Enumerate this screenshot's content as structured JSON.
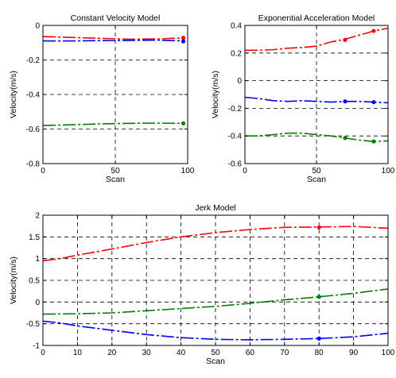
{
  "chart_data": [
    {
      "type": "line",
      "title": "Constant Velocity Model",
      "xlabel": "Scan",
      "ylabel": "Velocity(m/s)",
      "xlim": [
        0,
        100
      ],
      "ylim": [
        -0.8,
        0
      ],
      "xticks": [
        0,
        50,
        100
      ],
      "yticks": [
        -0.8,
        -0.6,
        -0.4,
        -0.2,
        0
      ],
      "xtick_labels": [
        "0",
        "50",
        "100"
      ],
      "ytick_labels": [
        "-0.8",
        "-0.6",
        "-0.4",
        "-0.2",
        "0"
      ],
      "grid": true,
      "series": [
        {
          "color": "#ff0000",
          "x": [
            0,
            20,
            40,
            60,
            80,
            98
          ],
          "y": [
            -0.065,
            -0.07,
            -0.075,
            -0.08,
            -0.078,
            -0.072
          ],
          "markers": [
            {
              "x": 97,
              "y": -0.072
            }
          ]
        },
        {
          "color": "#0000ff",
          "x": [
            0,
            20,
            40,
            60,
            80,
            98
          ],
          "y": [
            -0.09,
            -0.09,
            -0.088,
            -0.087,
            -0.085,
            -0.09
          ],
          "markers": [
            {
              "x": 97,
              "y": -0.092
            }
          ]
        },
        {
          "color": "#008000",
          "x": [
            0,
            20,
            40,
            60,
            80,
            98
          ],
          "y": [
            -0.58,
            -0.575,
            -0.57,
            -0.567,
            -0.566,
            -0.567
          ],
          "markers": [
            {
              "x": 97,
              "y": -0.567
            }
          ]
        }
      ]
    },
    {
      "type": "line",
      "title": "Exponential Acceleration Model",
      "xlabel": "Scan",
      "ylabel": "Velocity(m/s)",
      "xlim": [
        0,
        100
      ],
      "ylim": [
        -0.6,
        0.4
      ],
      "xticks": [
        0,
        50,
        100
      ],
      "yticks": [
        -0.6,
        -0.4,
        -0.2,
        0,
        0.2,
        0.4
      ],
      "xtick_labels": [
        "0",
        "50",
        "100"
      ],
      "ytick_labels": [
        "-0.6",
        "-0.4",
        "-0.2",
        "0",
        "0.2",
        "0.4"
      ],
      "grid": true,
      "series": [
        {
          "color": "#ff0000",
          "x": [
            0,
            10,
            20,
            30,
            40,
            50,
            60,
            70,
            80,
            90,
            100
          ],
          "y": [
            0.22,
            0.22,
            0.225,
            0.235,
            0.24,
            0.25,
            0.28,
            0.3,
            0.33,
            0.36,
            0.38
          ],
          "markers": [
            {
              "x": 70,
              "y": 0.295
            },
            {
              "x": 90,
              "y": 0.36
            }
          ]
        },
        {
          "color": "#0000ff",
          "x": [
            0,
            10,
            20,
            30,
            40,
            50,
            60,
            70,
            80,
            90,
            100
          ],
          "y": [
            -0.12,
            -0.13,
            -0.145,
            -0.15,
            -0.145,
            -0.15,
            -0.155,
            -0.15,
            -0.15,
            -0.155,
            -0.16
          ],
          "markers": [
            {
              "x": 70,
              "y": -0.15
            },
            {
              "x": 90,
              "y": -0.155
            }
          ]
        },
        {
          "color": "#008000",
          "x": [
            0,
            10,
            20,
            30,
            40,
            50,
            60,
            70,
            80,
            90,
            100
          ],
          "y": [
            -0.4,
            -0.4,
            -0.39,
            -0.38,
            -0.38,
            -0.39,
            -0.4,
            -0.415,
            -0.43,
            -0.44,
            -0.435
          ],
          "markers": [
            {
              "x": 70,
              "y": -0.415
            },
            {
              "x": 90,
              "y": -0.44
            }
          ]
        }
      ]
    },
    {
      "type": "line",
      "title": "Jerk Model",
      "xlabel": "Scan",
      "ylabel": "Velocity(m/s)",
      "xlim": [
        0,
        100
      ],
      "ylim": [
        -1,
        2
      ],
      "xticks": [
        0,
        10,
        20,
        30,
        40,
        50,
        60,
        70,
        80,
        90,
        100
      ],
      "yticks": [
        -1,
        -0.5,
        0,
        0.5,
        1,
        1.5,
        2
      ],
      "xtick_labels": [
        "0",
        "10",
        "20",
        "30",
        "40",
        "50",
        "60",
        "70",
        "80",
        "90",
        "100"
      ],
      "ytick_labels": [
        "-1",
        "-0.5",
        "0",
        "0.5",
        "1",
        "1.5",
        "2"
      ],
      "grid": true,
      "series": [
        {
          "color": "#ff0000",
          "x": [
            0,
            5,
            10,
            20,
            30,
            40,
            50,
            60,
            70,
            80,
            90,
            100
          ],
          "y": [
            0.95,
            1.0,
            1.08,
            1.22,
            1.37,
            1.5,
            1.6,
            1.67,
            1.72,
            1.73,
            1.74,
            1.7
          ],
          "markers": [
            {
              "x": 80,
              "y": 1.72
            }
          ]
        },
        {
          "color": "#008000",
          "x": [
            0,
            10,
            20,
            30,
            40,
            50,
            60,
            70,
            80,
            90,
            100
          ],
          "y": [
            -0.28,
            -0.27,
            -0.25,
            -0.2,
            -0.15,
            -0.1,
            -0.03,
            0.05,
            0.12,
            0.2,
            0.3
          ],
          "markers": [
            {
              "x": 80,
              "y": 0.12
            }
          ]
        },
        {
          "color": "#0000ff",
          "x": [
            0,
            5,
            10,
            20,
            30,
            40,
            50,
            60,
            70,
            80,
            90,
            100
          ],
          "y": [
            -0.44,
            -0.48,
            -0.55,
            -0.65,
            -0.75,
            -0.82,
            -0.86,
            -0.87,
            -0.86,
            -0.84,
            -0.8,
            -0.72
          ],
          "markers": [
            {
              "x": 80,
              "y": -0.84
            }
          ]
        }
      ]
    }
  ]
}
